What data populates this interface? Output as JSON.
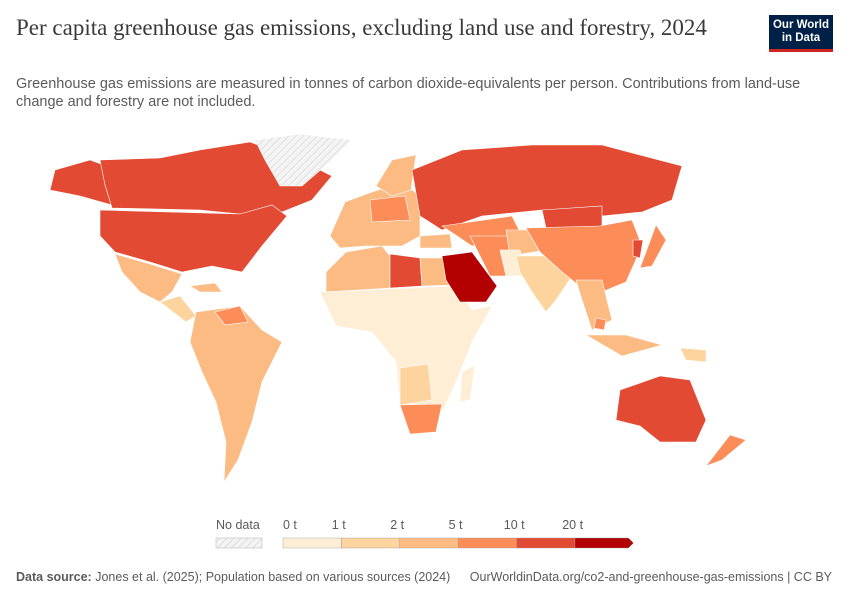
{
  "header": {
    "title": "Per capita greenhouse gas emissions, excluding land use and forestry, 2024",
    "subtitle": "Greenhouse gas emissions are measured in tonnes of carbon dioxide-equivalents per person. Contributions from land-use change and forestry are not included.",
    "logo_line1": "Our World",
    "logo_line2": "in Data"
  },
  "legend": {
    "no_data_label": "No data",
    "no_data_color": "#e9e9e9",
    "ticks": [
      "0 t",
      "1 t",
      "2 t",
      "5 t",
      "10 t",
      "20 t"
    ],
    "bin_colors": [
      "#feeed6",
      "#fdd49e",
      "#fdbb84",
      "#fc8d59",
      "#e34a33",
      "#b30000"
    ]
  },
  "footer": {
    "source_label": "Data source:",
    "source_text": "Jones et al. (2025); Population based on various sources (2024)",
    "url_license": "OurWorldinData.org/co2-and-greenhouse-gas-emissions | CC BY"
  }
}
